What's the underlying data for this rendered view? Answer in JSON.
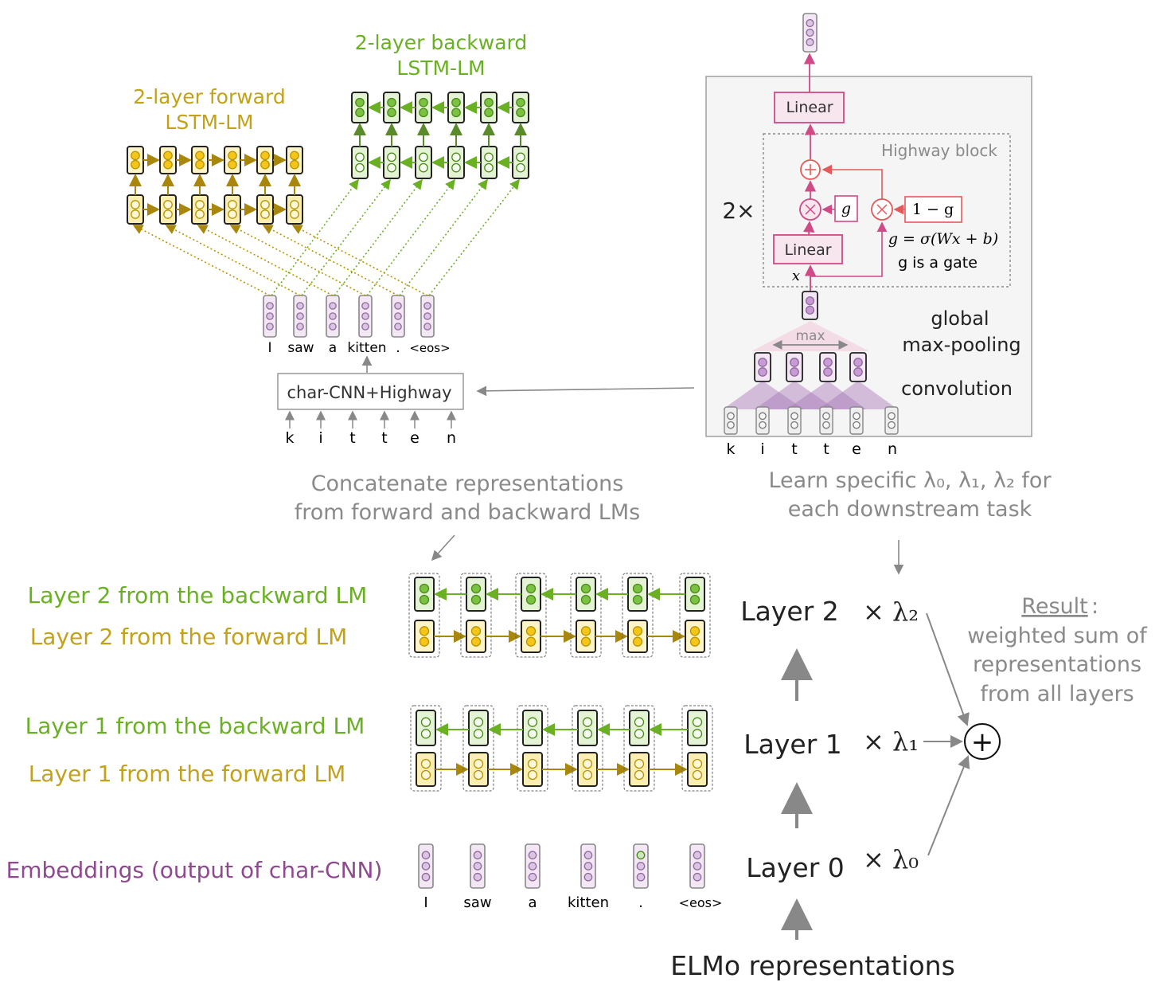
{
  "top_left": {
    "forward_title": [
      "2-layer forward",
      "LSTM-LM"
    ],
    "backward_title": [
      "2-layer backward",
      "LSTM-LM"
    ],
    "tokens": [
      "I",
      "saw",
      "a",
      "kitten",
      ".",
      "<eos>"
    ],
    "char_cnn_label": "char-CNN+Highway",
    "chars": [
      "k",
      "i",
      "t",
      "t",
      "e",
      "n"
    ]
  },
  "top_right": {
    "linear_top": "Linear",
    "linear_bottom": "Linear",
    "highway_block": "Highway block",
    "repeat": "2×",
    "g": "g",
    "one_minus_g": "1 − g",
    "gate_formula": "g = σ(Wx + b)",
    "gate_note": "g is a gate",
    "x": "x",
    "max": "max",
    "global_maxpool": [
      "global",
      "max-pooling"
    ],
    "convolution": "convolution",
    "chars": [
      "k",
      "i",
      "t",
      "t",
      "e",
      "n"
    ]
  },
  "concat_note": [
    "Concatenate representations",
    "from forward and backward LMs"
  ],
  "learn_note": [
    "Learn specific λ₀, λ₁, λ₂ for",
    "each downstream task"
  ],
  "row_labels": {
    "l2_back": "Layer 2 from the backward LM",
    "l2_fwd": "Layer 2 from the forward LM",
    "l1_back": "Layer 1 from the backward LM",
    "l1_fwd": "Layer 1 from the forward LM",
    "emb": "Embeddings (output of char-CNN)"
  },
  "bottom_tokens": [
    "I",
    "saw",
    "a",
    "kitten",
    ".",
    "<eos>"
  ],
  "layers": {
    "l2": "Layer 2",
    "l1": "Layer 1",
    "l0": "Layer 0",
    "lam2": "× λ₂",
    "lam1": "× λ₁",
    "lam0": "× λ₀"
  },
  "result": {
    "title": "Result",
    "colon": ":",
    "lines": [
      "weighted sum of",
      "representations",
      "from all layers"
    ]
  },
  "sum_symbol": "+",
  "footer": "ELMo representations",
  "colors": {
    "forward_text": "#c2a21a",
    "backward_text": "#6ab023",
    "embedding_text": "#8e4a8e",
    "grey_text": "#8a8a8a",
    "highway_pink": "#cf4a86",
    "gate_red": "#e45a5a"
  }
}
